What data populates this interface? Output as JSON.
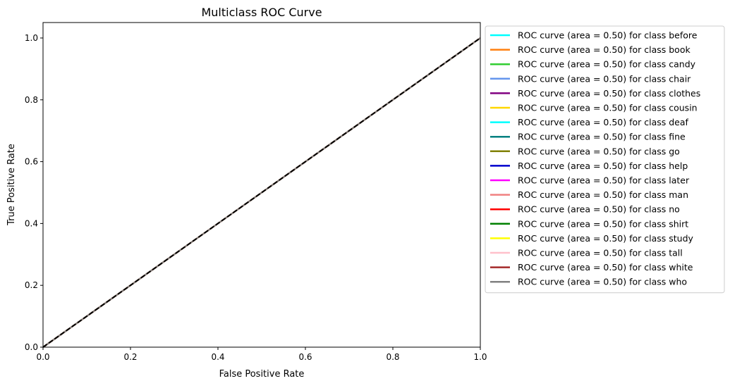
{
  "chart_data": {
    "type": "line",
    "title": "Multiclass ROC Curve",
    "xlabel": "False Positive Rate",
    "ylabel": "True Positive Rate",
    "xlim": [
      0.0,
      1.0
    ],
    "ylim": [
      0.0,
      1.05
    ],
    "x_ticks": [
      0.0,
      0.2,
      0.4,
      0.6,
      0.8,
      1.0
    ],
    "x_tick_labels": [
      "0.0",
      "0.2",
      "0.4",
      "0.6",
      "0.8",
      "1.0"
    ],
    "y_ticks": [
      0.0,
      0.2,
      0.4,
      0.6,
      0.8,
      1.0
    ],
    "y_tick_labels": [
      "0.0",
      "0.2",
      "0.4",
      "0.6",
      "0.8",
      "1.0"
    ],
    "grid": false,
    "legend_position": "outside-right-top",
    "series": [
      {
        "name": "ROC curve (area = 0.50) for class before",
        "color": "#00ffff",
        "x": [
          0,
          1
        ],
        "y": [
          0,
          1
        ]
      },
      {
        "name": "ROC curve (area = 0.50) for class book",
        "color": "#ff7f0e",
        "x": [
          0,
          1
        ],
        "y": [
          0,
          1
        ]
      },
      {
        "name": "ROC curve (area = 0.50) for class candy",
        "color": "#32cd32",
        "x": [
          0,
          1
        ],
        "y": [
          0,
          1
        ]
      },
      {
        "name": "ROC curve (area = 0.50) for class chair",
        "color": "#6495ed",
        "x": [
          0,
          1
        ],
        "y": [
          0,
          1
        ]
      },
      {
        "name": "ROC curve (area = 0.50) for class clothes",
        "color": "#800080",
        "x": [
          0,
          1
        ],
        "y": [
          0,
          1
        ]
      },
      {
        "name": "ROC curve (area = 0.50) for class cousin",
        "color": "#ffd700",
        "x": [
          0,
          1
        ],
        "y": [
          0,
          1
        ]
      },
      {
        "name": "ROC curve (area = 0.50) for class deaf",
        "color": "#00ffff",
        "x": [
          0,
          1
        ],
        "y": [
          0,
          1
        ]
      },
      {
        "name": "ROC curve (area = 0.50) for class fine",
        "color": "#008080",
        "x": [
          0,
          1
        ],
        "y": [
          0,
          1
        ]
      },
      {
        "name": "ROC curve (area = 0.50) for class go",
        "color": "#808000",
        "x": [
          0,
          1
        ],
        "y": [
          0,
          1
        ]
      },
      {
        "name": "ROC curve (area = 0.50) for class help",
        "color": "#0000cd",
        "x": [
          0,
          1
        ],
        "y": [
          0,
          1
        ]
      },
      {
        "name": "ROC curve (area = 0.50) for class later",
        "color": "#ff00ff",
        "x": [
          0,
          1
        ],
        "y": [
          0,
          1
        ]
      },
      {
        "name": "ROC curve (area = 0.50) for class man",
        "color": "#f08080",
        "x": [
          0,
          1
        ],
        "y": [
          0,
          1
        ]
      },
      {
        "name": "ROC curve (area = 0.50) for class no",
        "color": "#ff0000",
        "x": [
          0,
          1
        ],
        "y": [
          0,
          1
        ]
      },
      {
        "name": "ROC curve (area = 0.50) for class shirt",
        "color": "#008000",
        "x": [
          0,
          1
        ],
        "y": [
          0,
          1
        ]
      },
      {
        "name": "ROC curve (area = 0.50) for class study",
        "color": "#ffff00",
        "x": [
          0,
          1
        ],
        "y": [
          0,
          1
        ]
      },
      {
        "name": "ROC curve (area = 0.50) for class tall",
        "color": "#ffc0cb",
        "x": [
          0,
          1
        ],
        "y": [
          0,
          1
        ]
      },
      {
        "name": "ROC curve (area = 0.50) for class white",
        "color": "#a52a2a",
        "x": [
          0,
          1
        ],
        "y": [
          0,
          1
        ]
      },
      {
        "name": "ROC curve (area = 0.50) for class who",
        "color": "#808080",
        "x": [
          0,
          1
        ],
        "y": [
          0,
          1
        ]
      }
    ],
    "reference_line": {
      "x": [
        0,
        1
      ],
      "y": [
        0,
        1
      ],
      "color": "#000000",
      "style": "dashed"
    }
  }
}
